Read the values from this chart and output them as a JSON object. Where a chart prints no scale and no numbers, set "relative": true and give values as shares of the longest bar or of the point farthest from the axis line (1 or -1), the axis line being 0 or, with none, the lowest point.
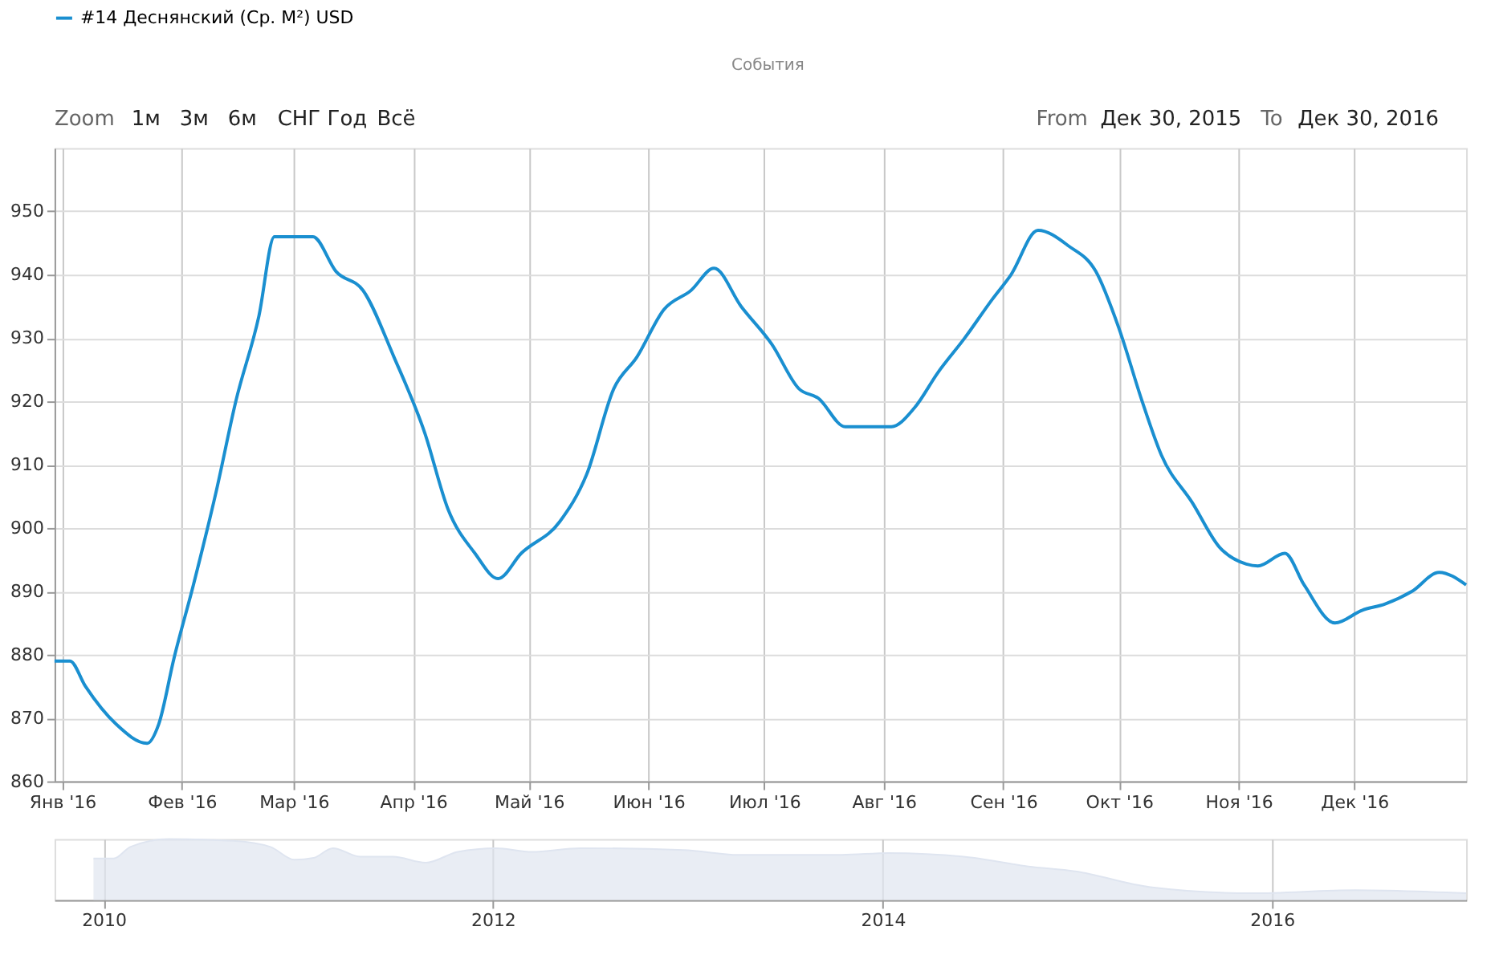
{
  "chart_data": [
    {
      "type": "line",
      "legend": "top",
      "grid": true,
      "annotations": [
        "Zoom",
        "1м",
        "3м",
        "6м",
        "СНГ",
        "Год",
        "Всё",
        "События",
        "From",
        "Дек 30, 2015",
        "To",
        "Дек 30, 2016"
      ],
      "x": [
        "2015-12-30",
        "2016-01-03",
        "2016-01-07",
        "2016-01-15",
        "2016-01-23",
        "2016-01-26",
        "2016-01-30",
        "2016-02-04",
        "2016-02-10",
        "2016-02-15",
        "2016-02-21",
        "2016-02-25",
        "2016-03-06",
        "2016-03-12",
        "2016-03-19",
        "2016-03-27",
        "2016-04-04",
        "2016-04-10",
        "2016-04-17",
        "2016-04-23",
        "2016-04-29",
        "2016-05-09",
        "2016-05-16",
        "2016-05-23",
        "2016-05-29",
        "2016-06-05",
        "2016-06-12",
        "2016-06-18",
        "2016-06-25",
        "2016-07-03",
        "2016-07-10",
        "2016-07-15",
        "2016-07-22",
        "2016-08-03",
        "2016-08-09",
        "2016-08-15",
        "2016-08-22",
        "2016-08-29",
        "2016-09-03",
        "2016-09-10",
        "2016-09-18",
        "2016-09-25",
        "2016-10-01",
        "2016-10-07",
        "2016-10-12",
        "2016-10-20",
        "2016-10-27",
        "2016-11-03",
        "2016-11-06",
        "2016-11-13",
        "2016-11-18",
        "2016-11-26",
        "2016-12-03",
        "2016-12-09",
        "2016-12-16",
        "2016-12-23",
        "2016-12-30"
      ],
      "series": [
        {
          "name": "#14 Деснянский (Ср. М²) USD",
          "color": "#1a8fd0",
          "values": [
            879,
            879,
            875,
            869,
            866,
            869,
            879.5,
            891,
            906,
            920,
            933.5,
            946,
            946,
            940.5,
            937.5,
            927,
            915,
            903,
            896,
            892,
            896,
            901,
            908.5,
            922,
            927,
            934.5,
            937.5,
            941,
            935,
            929,
            922,
            920.5,
            916,
            916,
            919,
            924.5,
            930,
            936,
            940,
            947,
            944.5,
            940.5,
            931.5,
            920,
            911.5,
            904,
            897,
            894.3,
            894,
            896,
            891,
            885,
            887,
            888,
            890,
            893,
            891
          ]
        }
      ],
      "xlim": [
        "2015-12-30",
        "2016-12-30"
      ],
      "xticks": [
        {
          "value": "2016-01-01",
          "label": "Янв '16"
        },
        {
          "value": "2016-02-01",
          "label": "Фев '16"
        },
        {
          "value": "2016-03-01",
          "label": "Мар '16"
        },
        {
          "value": "2016-04-01",
          "label": "Апр '16"
        },
        {
          "value": "2016-05-01",
          "label": "Май '16"
        },
        {
          "value": "2016-06-01",
          "label": "Июн '16"
        },
        {
          "value": "2016-07-01",
          "label": "Июл '16"
        },
        {
          "value": "2016-08-01",
          "label": "Авг '16"
        },
        {
          "value": "2016-09-01",
          "label": "Сен '16"
        },
        {
          "value": "2016-10-01",
          "label": "Окт '16"
        },
        {
          "value": "2016-11-01",
          "label": "Ноя '16"
        },
        {
          "value": "2016-12-01",
          "label": "Дек '16"
        }
      ],
      "ylim": [
        860,
        960
      ],
      "yticks": [
        860,
        870,
        880,
        890,
        900,
        910,
        920,
        930,
        940,
        950
      ]
    },
    {
      "type": "area",
      "relative": true,
      "grid": "x",
      "tick_labels": "x",
      "x": [
        "2009-12-13",
        "2010-01-20",
        "2010-02-20",
        "2010-05-03",
        "2010-09-01",
        "2010-11-10",
        "2010-12-25",
        "2011-01-30",
        "2011-03-07",
        "2011-04-27",
        "2011-06-28",
        "2011-08-28",
        "2011-10-27",
        "2012-01-07",
        "2012-03-14",
        "2012-06-13",
        "2012-12-24",
        "2013-04-06",
        "2013-10-16",
        "2014-01-12",
        "2014-06-02",
        "2014-10-01",
        "2014-12-28",
        "2015-05-18",
        "2015-11-24",
        "2016-06-05",
        "2016-12-30"
      ],
      "series": [
        {
          "color": "#dfe5f0",
          "values": [
            0.68,
            0.68,
            0.87,
            1,
            0.97,
            0.87,
            0.66,
            0.69,
            0.85,
            0.71,
            0.71,
            0.61,
            0.79,
            0.85,
            0.79,
            0.85,
            0.82,
            0.74,
            0.74,
            0.77,
            0.71,
            0.55,
            0.47,
            0.21,
            0.11,
            0.16,
            0.11
          ]
        }
      ],
      "xlim": [
        "2009-10-01",
        "2016-12-30"
      ],
      "xticks": [
        {
          "value": "2010",
          "label": "2010"
        },
        {
          "value": "2012",
          "label": "2012"
        },
        {
          "value": "2014",
          "label": "2014"
        },
        {
          "value": "2016",
          "label": "2016"
        }
      ]
    }
  ]
}
